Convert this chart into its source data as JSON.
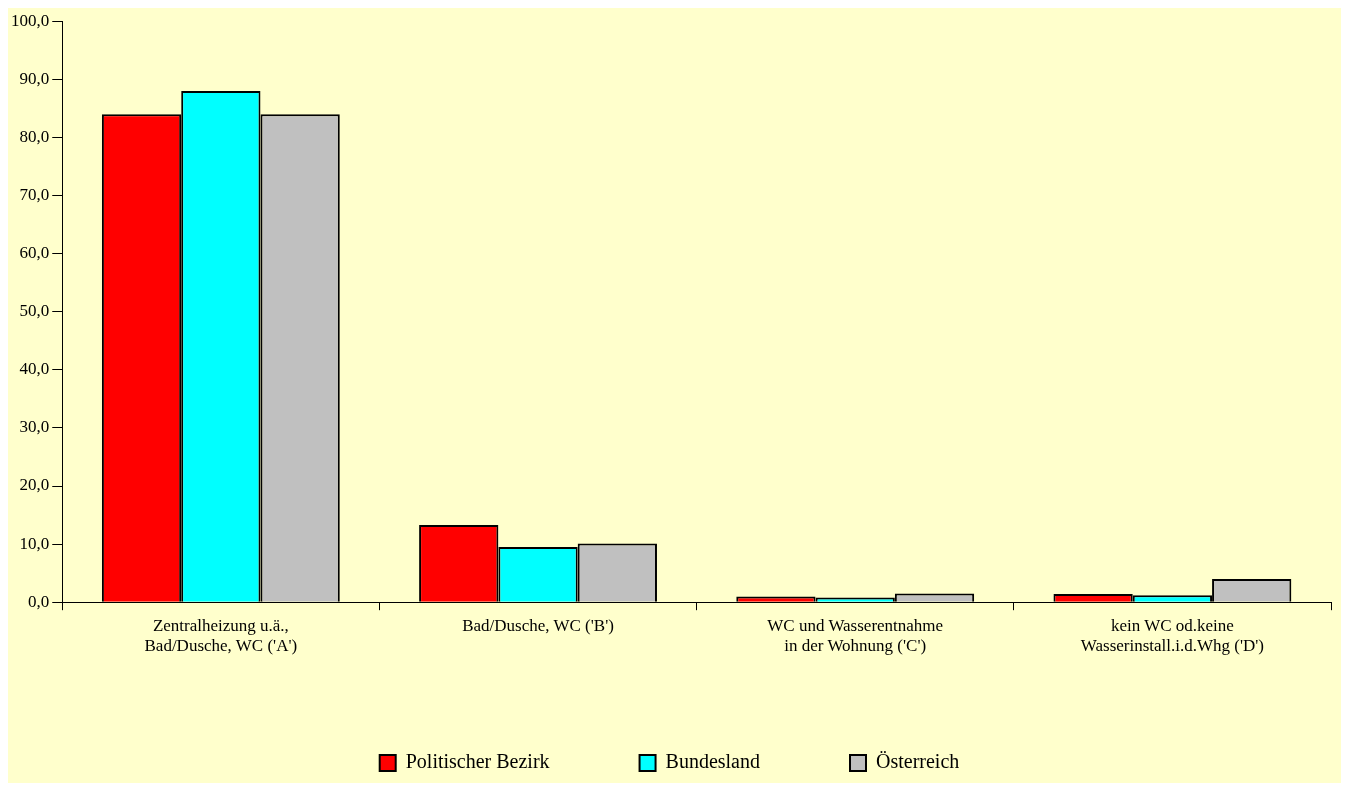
{
  "chart_data": {
    "type": "bar",
    "categories": [
      "Zentralheizung u.ä.,\nBad/Dusche, WC ('A')",
      "Bad/Dusche, WC ('B')",
      "WC und Wasserentnahme\nin der Wohnung ('C')",
      "kein WC od.keine\nWasserinstall.i.d.Whg ('D')"
    ],
    "series": [
      {
        "name": "Politischer Bezirk",
        "color": "#ff0000",
        "values": [
          84.0,
          13.3,
          1.0,
          1.4
        ]
      },
      {
        "name": "Bundesland",
        "color": "#00ffff",
        "values": [
          88.0,
          9.5,
          0.8,
          1.2
        ]
      },
      {
        "name": "Österreich",
        "color": "#c0c0c0",
        "values": [
          84.0,
          10.1,
          1.5,
          4.0
        ]
      }
    ],
    "ylim": [
      0,
      100
    ],
    "yticks": [
      {
        "value": 0,
        "label": "0,0"
      },
      {
        "value": 10,
        "label": "10,0"
      },
      {
        "value": 20,
        "label": "20,0"
      },
      {
        "value": 30,
        "label": "30,0"
      },
      {
        "value": 40,
        "label": "40,0"
      },
      {
        "value": 50,
        "label": "50,0"
      },
      {
        "value": 60,
        "label": "60,0"
      },
      {
        "value": 70,
        "label": "70,0"
      },
      {
        "value": 80,
        "label": "80,0"
      },
      {
        "value": 90,
        "label": "90,0"
      },
      {
        "value": 100,
        "label": "100,0"
      }
    ],
    "grid": false,
    "legend": "bottom"
  }
}
